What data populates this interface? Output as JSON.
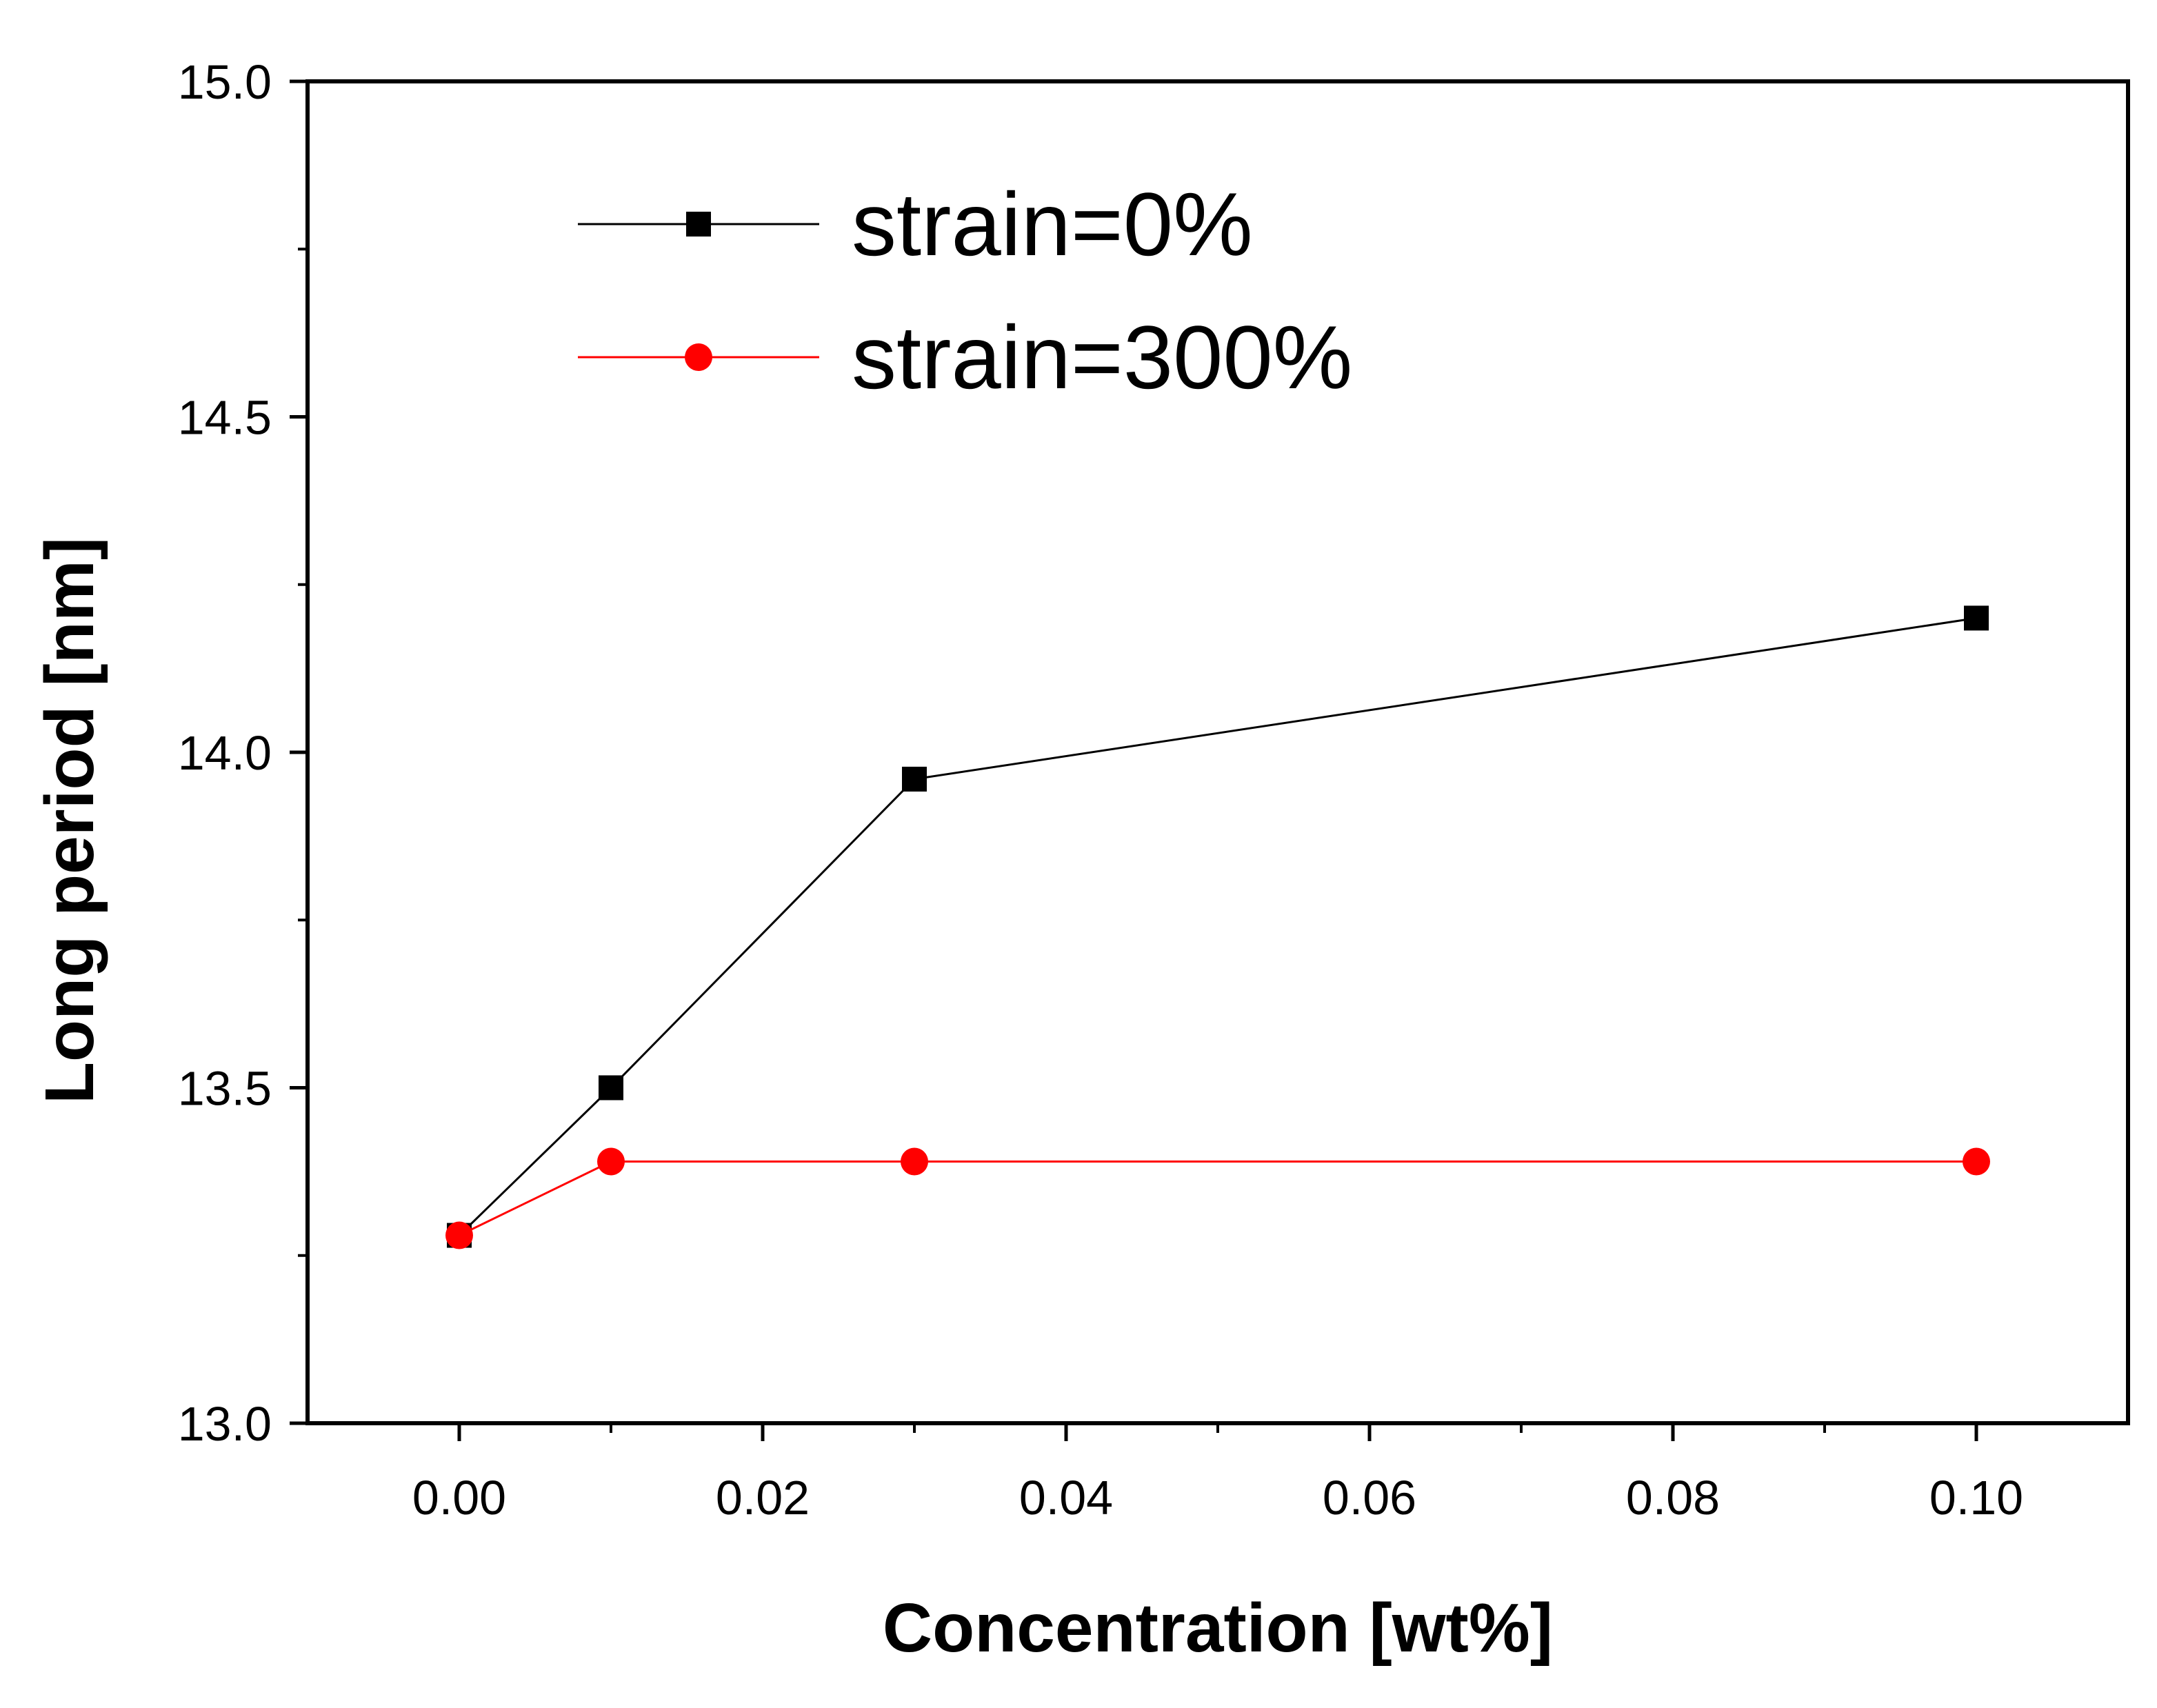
{
  "chart_data": {
    "type": "line",
    "title": "",
    "xlabel": "Concentration [wt%]",
    "ylabel": "Long period [nm]",
    "xlim": [
      -0.01,
      0.11
    ],
    "ylim": [
      13.0,
      15.0
    ],
    "xticks": [
      0.0,
      0.02,
      0.04,
      0.06,
      0.08,
      0.1
    ],
    "xtick_labels": [
      "0.00",
      "0.02",
      "0.04",
      "0.06",
      "0.08",
      "0.10"
    ],
    "yticks": [
      13.0,
      13.5,
      14.0,
      14.5,
      15.0
    ],
    "ytick_labels": [
      "13.0",
      "13.5",
      "14.0",
      "14.5",
      "15.0"
    ],
    "legend_position": "top-left",
    "grid": false,
    "series": [
      {
        "name": "strain=0%",
        "marker": "square",
        "color": "#000000",
        "x": [
          0.0,
          0.01,
          0.03,
          0.1
        ],
        "y": [
          13.28,
          13.5,
          13.96,
          14.2
        ]
      },
      {
        "name": "strain=300%",
        "marker": "circle",
        "color": "#ff0000",
        "x": [
          0.0,
          0.01,
          0.03,
          0.1
        ],
        "y": [
          13.28,
          13.39,
          13.39,
          13.39
        ]
      }
    ]
  }
}
